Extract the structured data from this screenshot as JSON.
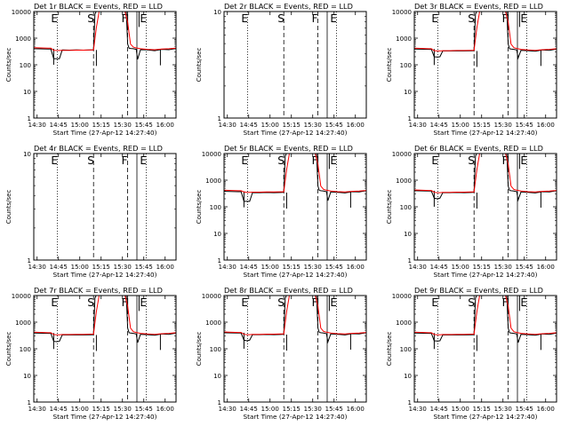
{
  "colors": {
    "events": "#000000",
    "lld": "#ff0000",
    "background": "#ffffff",
    "axis": "#000000"
  },
  "common": {
    "xlabel": "Start Time (27-Apr-12 14:27:40)",
    "ylabel": "Counts/sec",
    "xticks": [
      "14:30",
      "14:45",
      "15:00",
      "15:15",
      "15:30",
      "15:45",
      "16:00"
    ],
    "xtick_minutes": [
      2.33,
      17.33,
      32.33,
      47.33,
      62.33,
      77.33,
      92.33
    ],
    "yticks_log": [
      "1",
      "10",
      "100",
      "1000",
      "10000"
    ],
    "yticks_flat": [
      "1",
      "10"
    ],
    "xlim_minutes": [
      0,
      100
    ],
    "x_unit": "minutes after 14:27:40",
    "markers": [
      {
        "label": "E",
        "minute": 16.5,
        "style": "dotted"
      },
      {
        "label": "S",
        "minute": 42.0,
        "style": "dashed"
      },
      {
        "label": "F",
        "minute": 66.0,
        "style": "dashed"
      },
      {
        "label": "",
        "minute": 72.5,
        "style": "solid"
      },
      {
        "label": "E",
        "minute": 79.0,
        "style": "dotted"
      }
    ]
  },
  "chart_data": [
    {
      "type": "line",
      "title": "Det 1r BLACK = Events, RED = LLD",
      "yscale": "log",
      "ylim": [
        1,
        10000
      ],
      "has_data": true,
      "dip": "deep",
      "series": [
        {
          "name": "Events",
          "x": [
            0,
            10,
            12,
            14,
            16,
            18,
            20,
            25,
            30,
            35,
            40,
            42,
            43,
            44,
            46,
            50,
            55,
            60,
            64,
            65,
            66,
            67,
            68,
            70,
            72,
            73,
            75,
            80,
            85,
            90,
            95,
            100
          ],
          "y": [
            400,
            390,
            390,
            170,
            170,
            170,
            360,
            355,
            360,
            355,
            360,
            360,
            8000,
            12000,
            12000,
            12000,
            12000,
            12000,
            12000,
            12000,
            600,
            420,
            410,
            400,
            380,
            160,
            370,
            360,
            340,
            380,
            370,
            410
          ]
        },
        {
          "name": "LLD",
          "x": [
            0,
            10,
            12,
            14,
            16,
            18,
            20,
            25,
            30,
            35,
            40,
            42,
            44,
            46,
            50,
            55,
            60,
            64,
            66,
            68,
            70,
            72,
            75,
            80,
            85,
            90,
            95,
            100
          ],
          "y": [
            440,
            420,
            420,
            350,
            345,
            345,
            350,
            350,
            355,
            355,
            360,
            360,
            2500,
            12000,
            12000,
            12000,
            12000,
            12000,
            4000,
            600,
            460,
            430,
            400,
            380,
            370,
            390,
            400,
            420
          ]
        }
      ]
    },
    {
      "type": "line",
      "title": "Det 2r BLACK = Events, RED = LLD",
      "yscale": "log",
      "ylim": [
        1,
        10
      ],
      "has_data": false,
      "series": []
    },
    {
      "type": "line",
      "title": "Det 3r BLACK = Events, RED = LLD",
      "yscale": "log",
      "ylim": [
        1,
        10000
      ],
      "has_data": true,
      "dip": "shallow",
      "series": [
        {
          "name": "Events",
          "x": [
            0,
            10,
            12,
            14,
            16,
            18,
            20,
            25,
            30,
            35,
            40,
            42,
            43,
            44,
            46,
            50,
            55,
            60,
            64,
            65,
            66,
            67,
            68,
            70,
            72,
            73,
            75,
            80,
            85,
            90,
            95,
            100
          ],
          "y": [
            390,
            380,
            380,
            200,
            195,
            200,
            330,
            330,
            335,
            330,
            335,
            340,
            8000,
            12000,
            12000,
            12000,
            12000,
            12000,
            12000,
            12000,
            600,
            400,
            390,
            380,
            360,
            180,
            350,
            340,
            320,
            360,
            350,
            390
          ]
        },
        {
          "name": "LLD",
          "x": [
            0,
            10,
            12,
            14,
            16,
            18,
            20,
            25,
            30,
            35,
            40,
            42,
            44,
            46,
            50,
            55,
            60,
            64,
            66,
            68,
            70,
            72,
            75,
            80,
            85,
            90,
            95,
            100
          ],
          "y": [
            420,
            400,
            400,
            340,
            330,
            330,
            340,
            340,
            345,
            345,
            350,
            350,
            2500,
            12000,
            12000,
            12000,
            12000,
            12000,
            4000,
            600,
            440,
            410,
            380,
            360,
            350,
            370,
            380,
            400
          ]
        }
      ]
    },
    {
      "type": "line",
      "title": "Det 4r BLACK = Events, RED = LLD",
      "yscale": "log",
      "ylim": [
        1,
        10
      ],
      "has_data": false,
      "series": []
    },
    {
      "type": "line",
      "title": "Det 5r BLACK = Events, RED = LLD",
      "yscale": "log",
      "ylim": [
        1,
        10000
      ],
      "has_data": true,
      "dip": "deep",
      "series": [
        {
          "name": "Events",
          "x": [
            0,
            10,
            12,
            14,
            16,
            18,
            20,
            25,
            30,
            35,
            40,
            42,
            43,
            44,
            46,
            50,
            55,
            60,
            64,
            65,
            66,
            67,
            68,
            70,
            72,
            73,
            75,
            80,
            85,
            90,
            95,
            100
          ],
          "y": [
            380,
            370,
            370,
            160,
            160,
            160,
            340,
            340,
            345,
            340,
            345,
            350,
            8000,
            12000,
            12000,
            12000,
            12000,
            12000,
            12000,
            12000,
            600,
            410,
            400,
            390,
            370,
            170,
            360,
            350,
            330,
            370,
            360,
            400
          ]
        },
        {
          "name": "LLD",
          "x": [
            0,
            10,
            12,
            14,
            16,
            18,
            20,
            25,
            30,
            35,
            40,
            42,
            44,
            46,
            50,
            55,
            60,
            64,
            66,
            68,
            70,
            72,
            75,
            80,
            85,
            90,
            95,
            100
          ],
          "y": [
            420,
            400,
            400,
            360,
            350,
            350,
            355,
            355,
            360,
            360,
            365,
            365,
            2500,
            12000,
            12000,
            12000,
            12000,
            12000,
            4000,
            600,
            450,
            420,
            390,
            370,
            360,
            380,
            390,
            410
          ]
        }
      ]
    },
    {
      "type": "line",
      "title": "Det 6r BLACK = Events, RED = LLD",
      "yscale": "log",
      "ylim": [
        1,
        10000
      ],
      "has_data": true,
      "dip": "shallow",
      "series": [
        {
          "name": "Events",
          "x": [
            0,
            10,
            12,
            14,
            16,
            18,
            20,
            25,
            30,
            35,
            40,
            42,
            43,
            44,
            46,
            50,
            55,
            60,
            64,
            65,
            66,
            67,
            68,
            70,
            72,
            73,
            75,
            80,
            85,
            90,
            95,
            100
          ],
          "y": [
            400,
            390,
            390,
            210,
            200,
            210,
            340,
            340,
            345,
            340,
            345,
            350,
            8000,
            12000,
            12000,
            12000,
            12000,
            12000,
            12000,
            12000,
            600,
            410,
            400,
            390,
            370,
            180,
            360,
            350,
            330,
            370,
            360,
            400
          ]
        },
        {
          "name": "LLD",
          "x": [
            0,
            10,
            12,
            14,
            16,
            18,
            20,
            25,
            30,
            35,
            40,
            42,
            44,
            46,
            50,
            55,
            60,
            64,
            66,
            68,
            70,
            72,
            75,
            80,
            85,
            90,
            95,
            100
          ],
          "y": [
            430,
            410,
            410,
            350,
            340,
            340,
            350,
            350,
            355,
            355,
            360,
            360,
            2500,
            12000,
            12000,
            12000,
            12000,
            12000,
            4000,
            600,
            450,
            420,
            390,
            370,
            360,
            380,
            390,
            410
          ]
        }
      ]
    },
    {
      "type": "line",
      "title": "Det 7r BLACK = Events, RED = LLD",
      "yscale": "log",
      "ylim": [
        1,
        10000
      ],
      "has_data": true,
      "dip": "shallow",
      "series": [
        {
          "name": "Events",
          "x": [
            0,
            10,
            12,
            14,
            16,
            18,
            20,
            25,
            30,
            35,
            40,
            42,
            43,
            44,
            46,
            50,
            55,
            60,
            64,
            65,
            66,
            67,
            68,
            70,
            72,
            73,
            75,
            80,
            85,
            90,
            95,
            100
          ],
          "y": [
            390,
            380,
            380,
            190,
            185,
            190,
            330,
            330,
            335,
            330,
            335,
            340,
            8000,
            12000,
            12000,
            12000,
            12000,
            12000,
            12000,
            12000,
            600,
            400,
            390,
            380,
            360,
            170,
            350,
            340,
            320,
            360,
            350,
            390
          ]
        },
        {
          "name": "LLD",
          "x": [
            0,
            10,
            12,
            14,
            16,
            18,
            20,
            25,
            30,
            35,
            40,
            42,
            44,
            46,
            50,
            55,
            60,
            64,
            66,
            68,
            70,
            72,
            75,
            80,
            85,
            90,
            95,
            100
          ],
          "y": [
            420,
            400,
            400,
            345,
            335,
            335,
            345,
            345,
            350,
            350,
            355,
            355,
            2500,
            12000,
            12000,
            12000,
            12000,
            12000,
            4000,
            600,
            440,
            410,
            380,
            360,
            350,
            370,
            380,
            400
          ]
        }
      ]
    },
    {
      "type": "line",
      "title": "Det 8r BLACK = Events, RED = LLD",
      "yscale": "log",
      "ylim": [
        1,
        10000
      ],
      "has_data": true,
      "dip": "shallow",
      "series": [
        {
          "name": "Events",
          "x": [
            0,
            10,
            12,
            14,
            16,
            18,
            20,
            25,
            30,
            35,
            40,
            42,
            43,
            44,
            46,
            50,
            55,
            60,
            64,
            65,
            66,
            67,
            68,
            70,
            72,
            73,
            75,
            80,
            85,
            90,
            95,
            100
          ],
          "y": [
            400,
            390,
            390,
            210,
            200,
            210,
            340,
            340,
            345,
            340,
            345,
            350,
            8000,
            12000,
            12000,
            12000,
            12000,
            12000,
            12000,
            12000,
            600,
            410,
            400,
            390,
            370,
            180,
            360,
            350,
            330,
            370,
            360,
            400
          ]
        },
        {
          "name": "LLD",
          "x": [
            0,
            10,
            12,
            14,
            16,
            18,
            20,
            25,
            30,
            35,
            40,
            42,
            44,
            46,
            50,
            55,
            60,
            64,
            66,
            68,
            70,
            72,
            75,
            80,
            85,
            90,
            95,
            100
          ],
          "y": [
            430,
            410,
            410,
            350,
            340,
            340,
            350,
            350,
            355,
            355,
            360,
            360,
            2500,
            12000,
            12000,
            12000,
            12000,
            12000,
            4000,
            600,
            450,
            420,
            390,
            370,
            360,
            380,
            390,
            410
          ]
        }
      ]
    },
    {
      "type": "line",
      "title": "Det 9r BLACK = Events, RED = LLD",
      "yscale": "log",
      "ylim": [
        1,
        10000
      ],
      "has_data": true,
      "dip": "shallow",
      "series": [
        {
          "name": "Events",
          "x": [
            0,
            10,
            12,
            14,
            16,
            18,
            20,
            25,
            30,
            35,
            40,
            42,
            43,
            44,
            46,
            50,
            55,
            60,
            64,
            65,
            66,
            67,
            68,
            70,
            72,
            73,
            75,
            80,
            85,
            90,
            95,
            100
          ],
          "y": [
            390,
            380,
            380,
            200,
            195,
            200,
            330,
            330,
            335,
            330,
            335,
            340,
            8000,
            12000,
            12000,
            12000,
            12000,
            12000,
            12000,
            12000,
            600,
            400,
            390,
            380,
            360,
            170,
            350,
            340,
            320,
            360,
            350,
            390
          ]
        },
        {
          "name": "LLD",
          "x": [
            0,
            10,
            12,
            14,
            16,
            18,
            20,
            25,
            30,
            35,
            40,
            42,
            44,
            46,
            50,
            55,
            60,
            64,
            66,
            68,
            70,
            72,
            75,
            80,
            85,
            90,
            95,
            100
          ],
          "y": [
            420,
            400,
            400,
            345,
            335,
            335,
            345,
            345,
            350,
            350,
            355,
            355,
            2500,
            12000,
            12000,
            12000,
            12000,
            12000,
            4000,
            600,
            440,
            410,
            380,
            360,
            350,
            370,
            380,
            400
          ]
        }
      ]
    }
  ]
}
